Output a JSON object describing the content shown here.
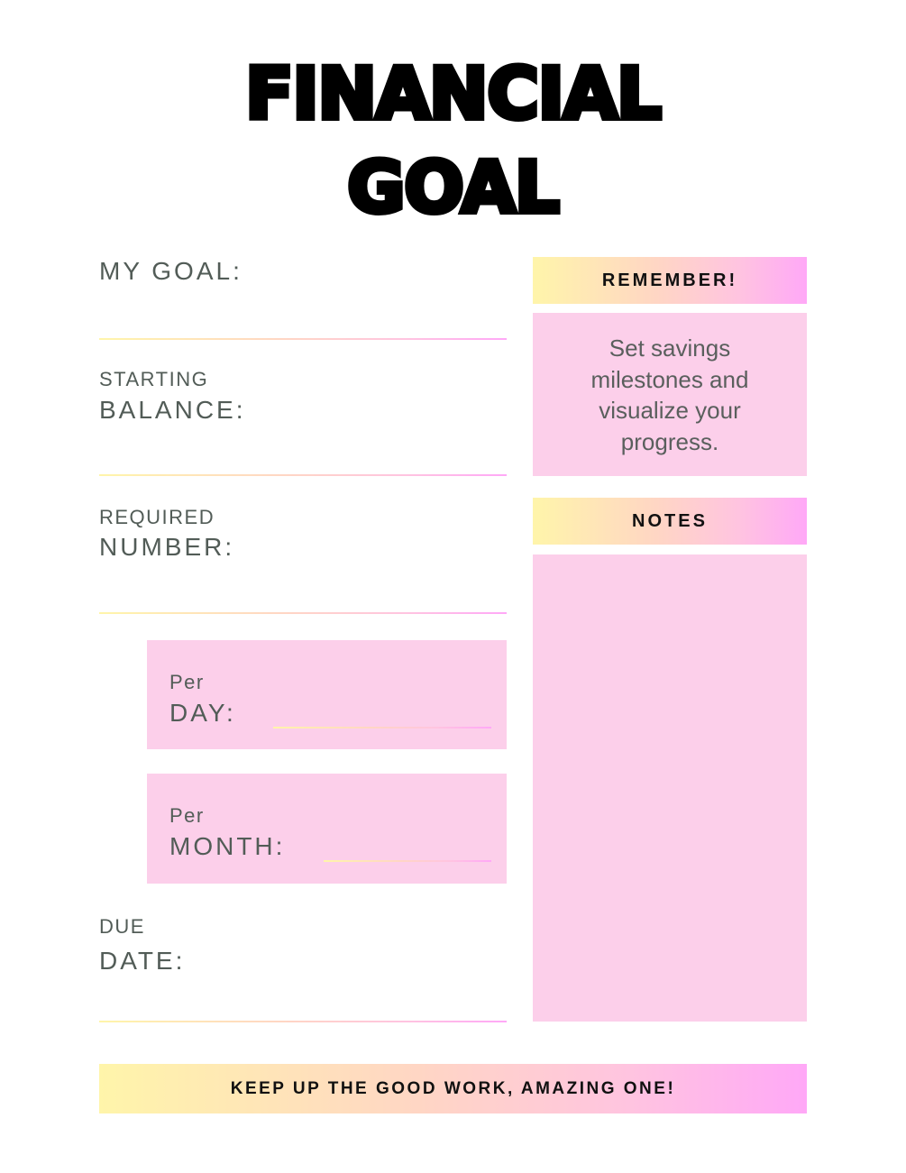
{
  "title": {
    "line1": "FINANCIAL",
    "line2": "GOAL"
  },
  "fields": {
    "my_goal": "MY GOAL:",
    "starting_small": "STARTING",
    "starting_large": "BALANCE:",
    "required_small": "REQUIRED",
    "required_large": "NUMBER:",
    "per_day_small": "Per",
    "per_day_large": "DAY:",
    "per_month_small": "Per",
    "per_month_large": "MONTH:",
    "due_small": "DUE",
    "due_large": "DATE:"
  },
  "remember": {
    "header": "REMEMBER!",
    "text": "Set savings milestones and visualize your progress."
  },
  "notes": {
    "header": "NOTES"
  },
  "footer": {
    "text": "KEEP UP THE GOOD WORK, AMAZING ONE!"
  },
  "colors": {
    "gradient_start": "#fff5aa",
    "gradient_end": "#ffa8f7",
    "box_pink": "#fccfea",
    "text": "#525c57"
  }
}
